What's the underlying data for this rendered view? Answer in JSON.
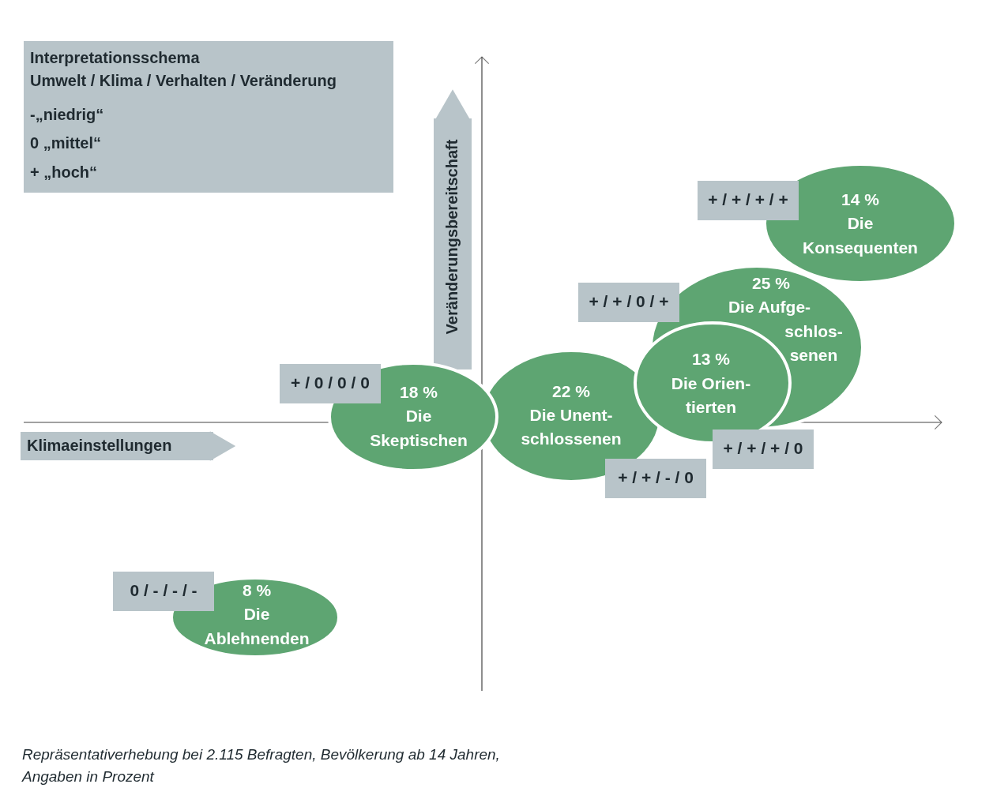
{
  "chart_data": {
    "type": "other",
    "title": "Interpretationsschema\nUmwelt / Klima / Verhalten / Veränderung",
    "xlabel": "Klimaeinstellungen",
    "ylabel": "Veränderungsbereitschaft",
    "categories": [
      "Die\nKonsequenten",
      "Die Aufge-\nschlos-\nsenen",
      "Die Orien-\ntierten",
      "Die Unent-\nschlossenen",
      "Die\nSkeptischen",
      "Die\nAblehnenden"
    ],
    "values": [
      14,
      25,
      13,
      22,
      18,
      8
    ],
    "value_labels": [
      "14 %",
      "25 %",
      "13 %",
      "22 %",
      "18 %",
      "8 %"
    ],
    "colors": [
      "#5ea572",
      "#5ea572",
      "#5ea572",
      "#5ea572",
      "#5ea572",
      "#5ea572"
    ],
    "annotations": [
      "-„niedrig“",
      "0 „mittel“",
      "+ „hoch“",
      "+ / + / + / +",
      "+ / + / 0 / +",
      "+ / 0 / 0 / 0",
      "+ / + / + / 0",
      "+ / + / - / 0",
      "0 / - / - / -",
      "Repräsentativerhebung bei 2.115 Befragten, Bevölkerung ab 14 Jahren,\nAngaben in Prozent"
    ]
  }
}
